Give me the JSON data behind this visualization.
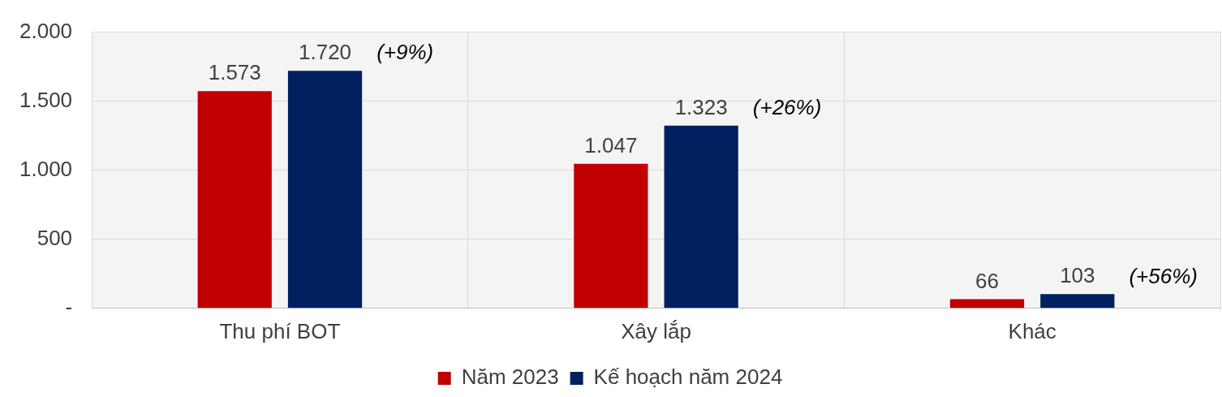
{
  "chart_data": {
    "type": "bar",
    "categories": [
      "Thu phí BOT",
      "Xây lắp",
      "Khác"
    ],
    "series": [
      {
        "name": "Năm 2023",
        "color": "#c00000",
        "values": [
          1573,
          1047,
          66
        ],
        "value_labels": [
          "1.573",
          "1.047",
          "66"
        ]
      },
      {
        "name": "Kế hoạch năm 2024",
        "color": "#002060",
        "values": [
          1720,
          1323,
          103
        ],
        "value_labels": [
          "1.720",
          "1.323",
          "103"
        ]
      }
    ],
    "ylim": [
      0,
      2000
    ],
    "yticks": [
      {
        "value": 0,
        "label": "-"
      },
      500,
      {
        "value": 1000,
        "label": "1.000"
      },
      {
        "value": 1500,
        "label": "1.500"
      },
      {
        "value": 2000,
        "label": "2.000"
      }
    ],
    "grid": true,
    "legend": "bottom",
    "annotations": [
      "(+9%)",
      "(+26%)",
      "(+56%)"
    ]
  }
}
